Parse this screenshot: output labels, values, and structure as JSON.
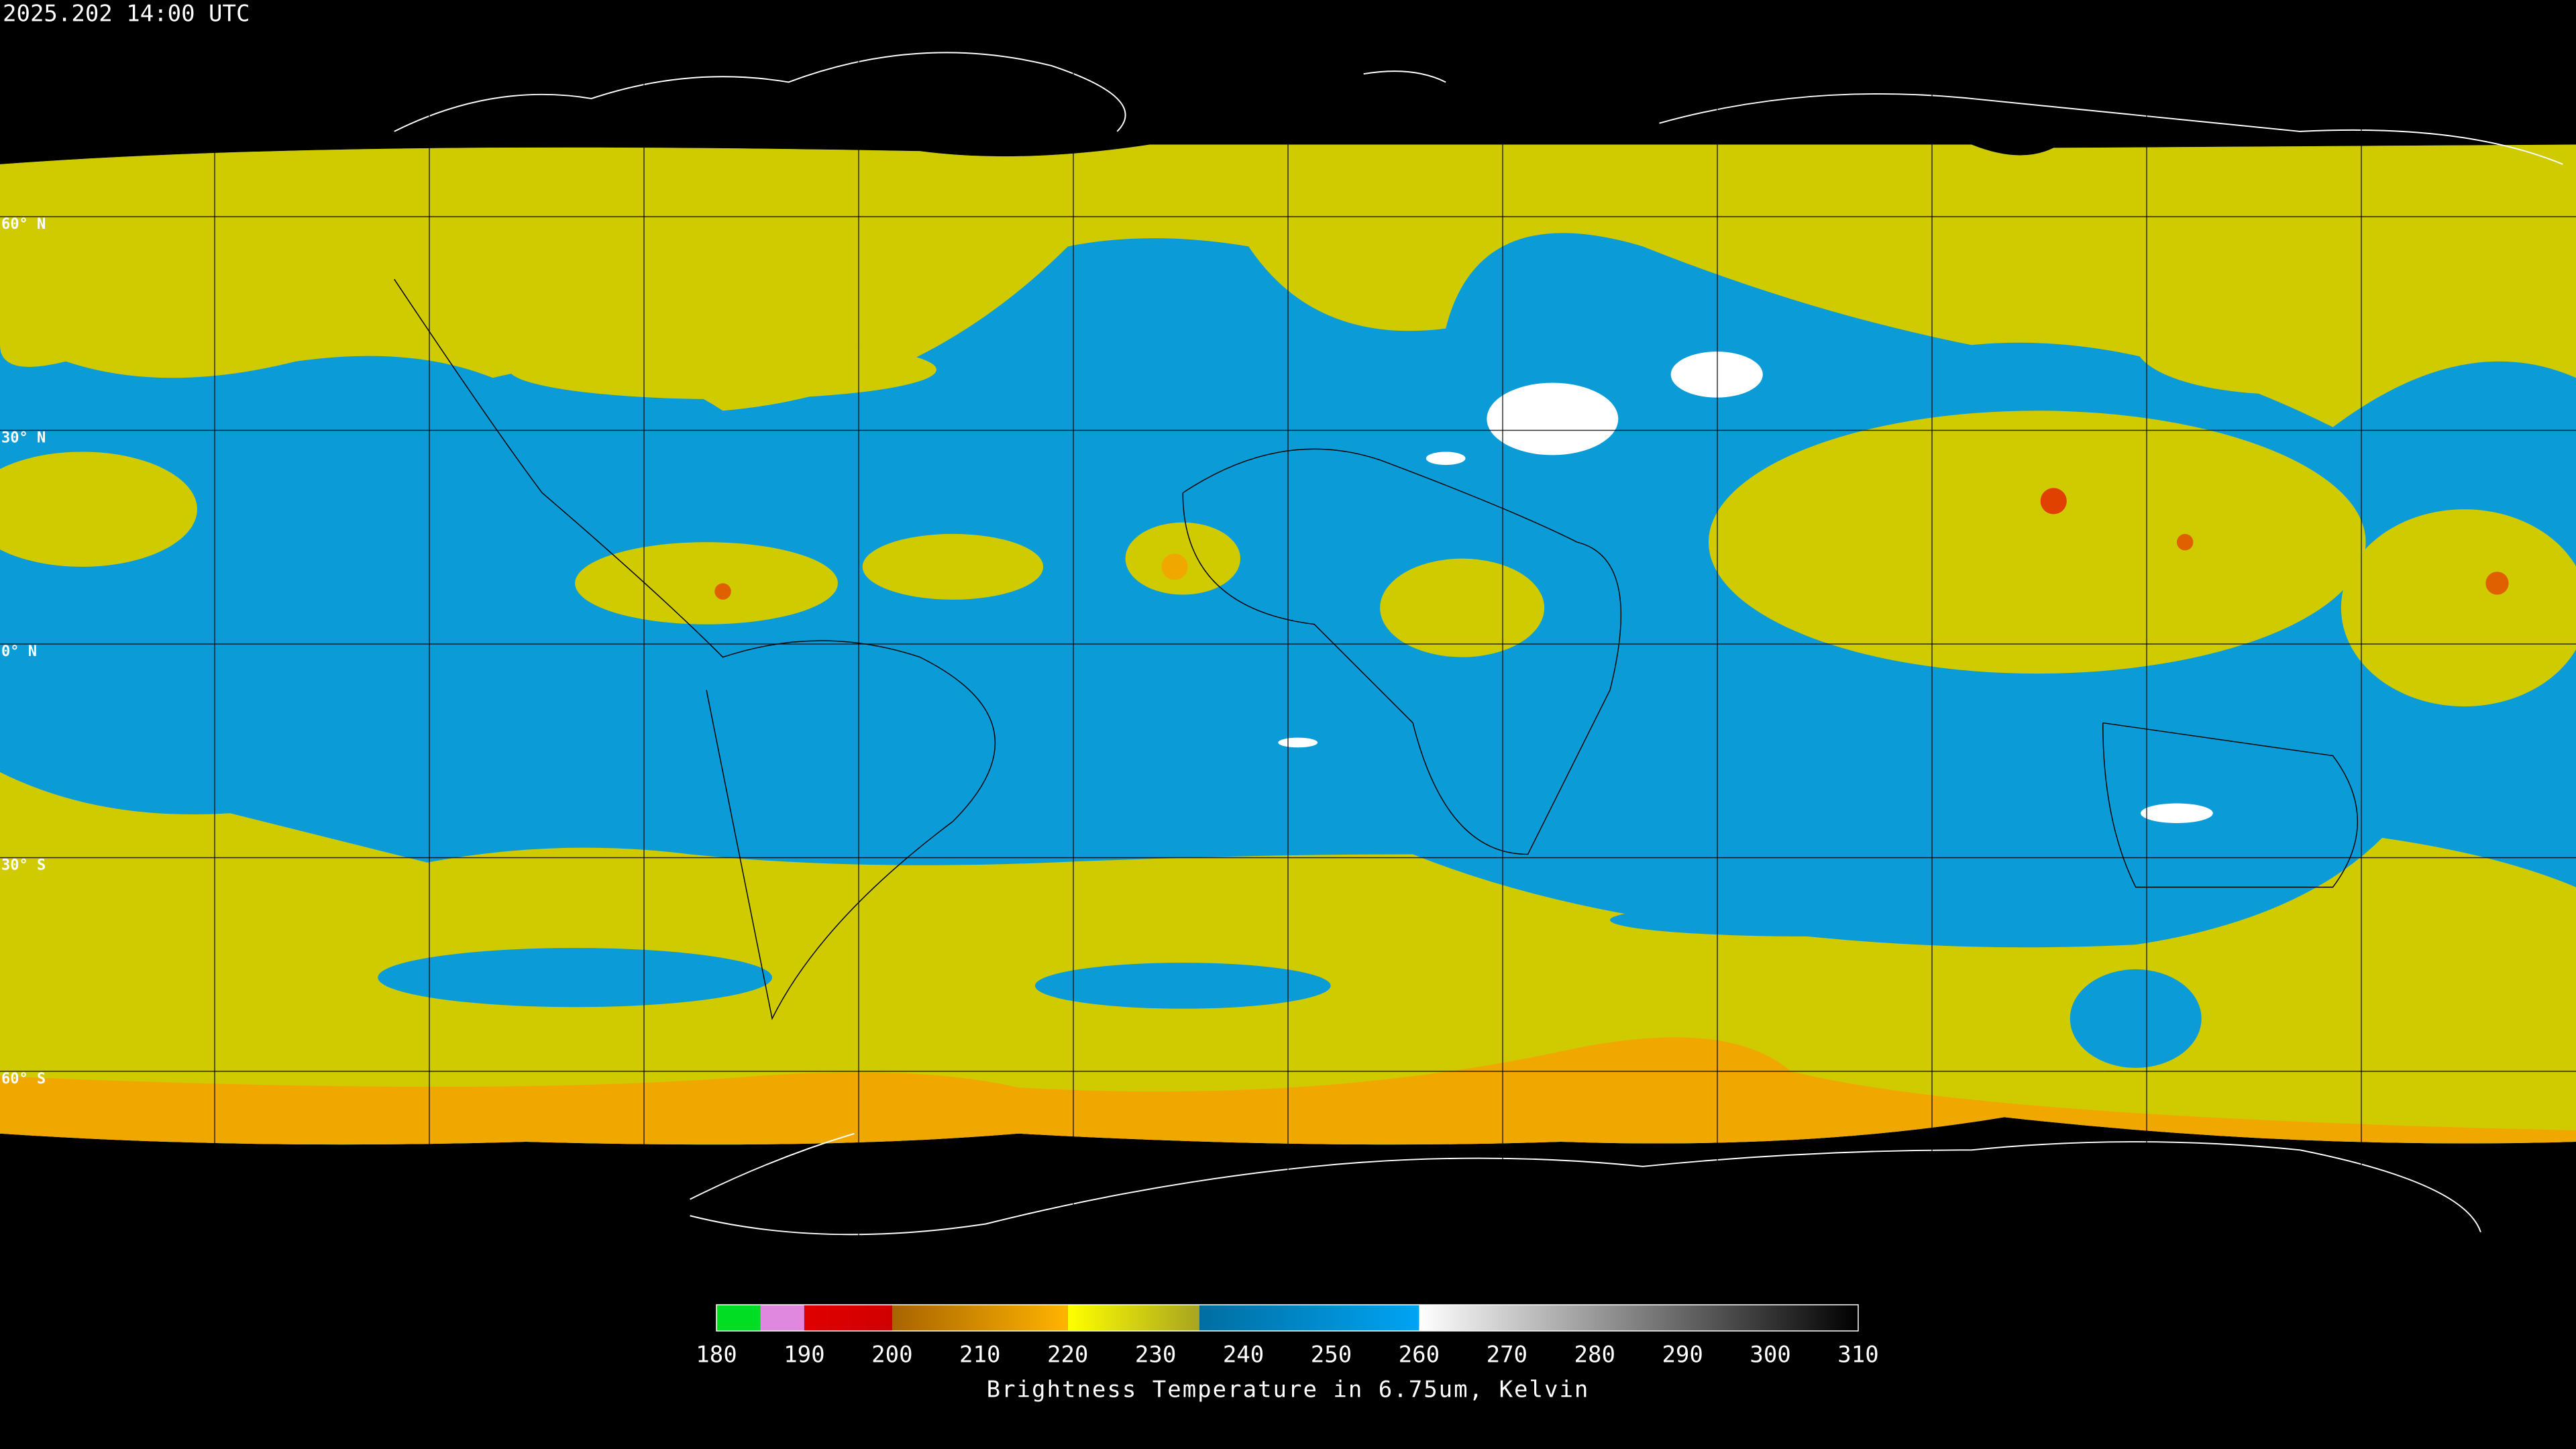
{
  "title": "2025.202 14:00 UTC",
  "map": {
    "lat_lines": [
      {
        "value": 60,
        "label": "60° N"
      },
      {
        "value": 30,
        "label": "30° N"
      },
      {
        "value": 0,
        "label": "0° N"
      },
      {
        "value": -30,
        "label": "30° S"
      },
      {
        "value": -60,
        "label": "60° S"
      }
    ]
  },
  "colorbar": {
    "label": "Brightness Temperature in 6.75um, Kelvin",
    "range": [
      180,
      310
    ],
    "ticks": [
      180,
      190,
      200,
      210,
      220,
      230,
      240,
      250,
      260,
      270,
      280,
      290,
      300,
      310
    ],
    "segments": [
      {
        "from": 180,
        "to": 185,
        "colors": [
          "#00dd22",
          "#00dd22"
        ]
      },
      {
        "from": 185,
        "to": 190,
        "colors": [
          "#e088e0",
          "#e088e0"
        ]
      },
      {
        "from": 190,
        "to": 200,
        "colors": [
          "#e00000",
          "#d00000"
        ]
      },
      {
        "from": 200,
        "to": 220,
        "colors": [
          "#a86400",
          "#ffb400"
        ]
      },
      {
        "from": 220,
        "to": 235,
        "colors": [
          "#ffff00",
          "#a8a420"
        ]
      },
      {
        "from": 235,
        "to": 260,
        "colors": [
          "#006ea0",
          "#00a4f4"
        ]
      },
      {
        "from": 260,
        "to": 310,
        "colors": [
          "#ffffff",
          "#000000"
        ]
      }
    ]
  }
}
